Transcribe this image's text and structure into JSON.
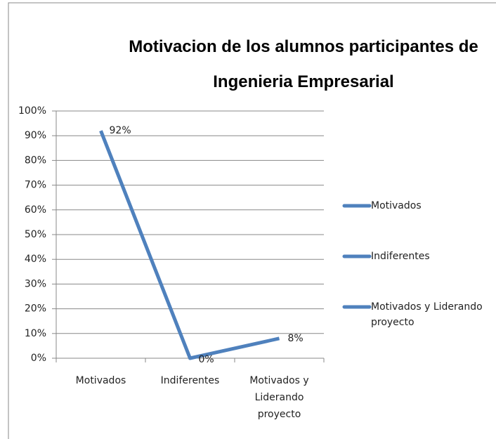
{
  "chart_data": {
    "type": "line",
    "title": "Motivacion de los alumnos participantes de Ingenieria Empresarial",
    "categories": [
      "Motivados",
      "Indiferentes",
      "Motivados y Liderando proyecto"
    ],
    "values": [
      92,
      0,
      8
    ],
    "value_labels": [
      "92%",
      "0%",
      "8%"
    ],
    "color": "#4f81bd",
    "ylim": [
      0,
      100
    ],
    "yticks": [
      {
        "value": 0,
        "label": "0%"
      },
      {
        "value": 10,
        "label": "10%"
      },
      {
        "value": 20,
        "label": "20%"
      },
      {
        "value": 30,
        "label": "30%"
      },
      {
        "value": 40,
        "label": "40%"
      },
      {
        "value": 50,
        "label": "50%"
      },
      {
        "value": 60,
        "label": "60%"
      },
      {
        "value": 70,
        "label": "70%"
      },
      {
        "value": 80,
        "label": "80%"
      },
      {
        "value": 90,
        "label": "90%"
      },
      {
        "value": 100,
        "label": "100%"
      }
    ],
    "grid": true,
    "legend": "right"
  }
}
